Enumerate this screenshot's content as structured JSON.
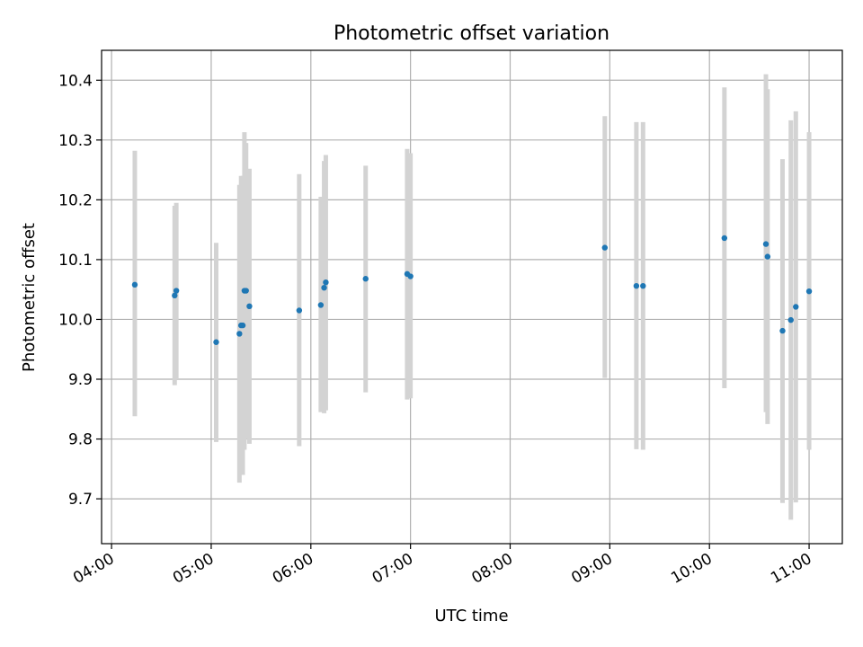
{
  "chart_data": {
    "type": "scatter",
    "title": "Photometric offset variation",
    "xlabel": "UTC time",
    "ylabel": "Photometric offset",
    "xlim": [
      "03:54",
      "11:20"
    ],
    "ylim": [
      9.625,
      10.45
    ],
    "grid": true,
    "x_ticks": [
      "04:00",
      "05:00",
      "06:00",
      "07:00",
      "08:00",
      "09:00",
      "10:00",
      "11:00"
    ],
    "y_ticks": [
      "9.7",
      "9.8",
      "9.9",
      "10.0",
      "10.1",
      "10.2",
      "10.3",
      "10.4"
    ],
    "error_bar_color": "#d3d3d3",
    "point_color": "#1f77b4",
    "points": [
      {
        "x": "04:14",
        "y": 10.058,
        "ylo": 9.838,
        "yhi": 10.282
      },
      {
        "x": "04:38",
        "y": 10.04,
        "ylo": 9.89,
        "yhi": 10.19
      },
      {
        "x": "04:39",
        "y": 10.048,
        "ylo": 9.9,
        "yhi": 10.195
      },
      {
        "x": "05:03",
        "y": 9.962,
        "ylo": 9.795,
        "yhi": 10.128
      },
      {
        "x": "05:17",
        "y": 9.976,
        "ylo": 9.727,
        "yhi": 10.225
      },
      {
        "x": "05:18",
        "y": 9.99,
        "ylo": 9.742,
        "yhi": 10.24
      },
      {
        "x": "05:19",
        "y": 9.99,
        "ylo": 9.74,
        "yhi": 10.24
      },
      {
        "x": "05:20",
        "y": 10.048,
        "ylo": 9.782,
        "yhi": 10.313
      },
      {
        "x": "05:21",
        "y": 10.048,
        "ylo": 9.8,
        "yhi": 10.295
      },
      {
        "x": "05:23",
        "y": 10.022,
        "ylo": 9.792,
        "yhi": 10.252
      },
      {
        "x": "05:53",
        "y": 10.015,
        "ylo": 9.788,
        "yhi": 10.243
      },
      {
        "x": "06:06",
        "y": 10.024,
        "ylo": 9.845,
        "yhi": 10.205
      },
      {
        "x": "06:08",
        "y": 10.053,
        "ylo": 9.843,
        "yhi": 10.265
      },
      {
        "x": "06:09",
        "y": 10.062,
        "ylo": 9.848,
        "yhi": 10.275
      },
      {
        "x": "06:33",
        "y": 10.068,
        "ylo": 9.878,
        "yhi": 10.257
      },
      {
        "x": "06:58",
        "y": 10.076,
        "ylo": 9.866,
        "yhi": 10.285
      },
      {
        "x": "07:00",
        "y": 10.072,
        "ylo": 9.868,
        "yhi": 10.278
      },
      {
        "x": "08:57",
        "y": 10.12,
        "ylo": 9.902,
        "yhi": 10.34
      },
      {
        "x": "09:16",
        "y": 10.056,
        "ylo": 9.783,
        "yhi": 10.33
      },
      {
        "x": "09:20",
        "y": 10.056,
        "ylo": 9.782,
        "yhi": 10.33
      },
      {
        "x": "10:09",
        "y": 10.136,
        "ylo": 9.885,
        "yhi": 10.388
      },
      {
        "x": "10:34",
        "y": 10.126,
        "ylo": 9.845,
        "yhi": 10.41
      },
      {
        "x": "10:35",
        "y": 10.105,
        "ylo": 9.825,
        "yhi": 10.385
      },
      {
        "x": "10:44",
        "y": 9.981,
        "ylo": 9.693,
        "yhi": 10.268
      },
      {
        "x": "10:49",
        "y": 9.999,
        "ylo": 9.665,
        "yhi": 10.333
      },
      {
        "x": "10:52",
        "y": 10.021,
        "ylo": 9.694,
        "yhi": 10.348
      },
      {
        "x": "11:00",
        "y": 10.047,
        "ylo": 9.782,
        "yhi": 10.313
      }
    ]
  }
}
